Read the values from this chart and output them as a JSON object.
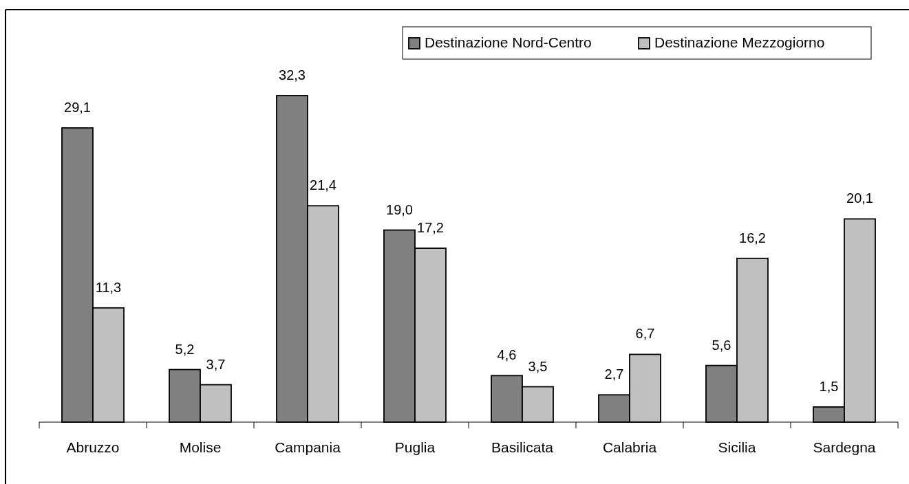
{
  "chart_data": {
    "type": "bar",
    "categories": [
      "Abruzzo",
      "Molise",
      "Campania",
      "Puglia",
      "Basilicata",
      "Calabria",
      "Sicilia",
      "Sardegna"
    ],
    "series": [
      {
        "name": "Destinazione Nord-Centro",
        "color": "#808080",
        "values": [
          29.1,
          5.2,
          32.3,
          19.0,
          4.6,
          2.7,
          5.6,
          1.5
        ],
        "value_labels": [
          "29,1",
          "5,2",
          "32,3",
          "19,0",
          "4,6",
          "2,7",
          "5,6",
          "1,5"
        ]
      },
      {
        "name": "Destinazione Mezzogiorno",
        "color": "#c0c0c0",
        "values": [
          11.3,
          3.7,
          21.4,
          17.2,
          3.5,
          6.7,
          16.2,
          20.1
        ],
        "value_labels": [
          "11,3",
          "3,7",
          "21,4",
          "17,2",
          "3,5",
          "6,7",
          "16,2",
          "20,1"
        ]
      }
    ],
    "tick_labels": "x",
    "legend": "top right"
  }
}
